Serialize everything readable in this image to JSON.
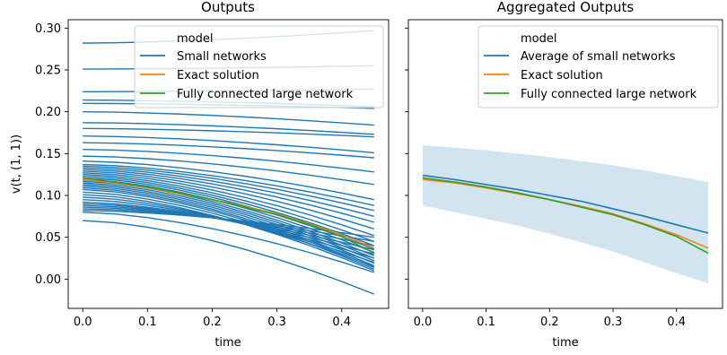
{
  "chart_data": [
    {
      "type": "line",
      "title": "Outputs",
      "xlabel": "time",
      "ylabel": "v(t, (1, 1))",
      "xlim": [
        -0.0225,
        0.4725
      ],
      "ylim": [
        -0.035,
        0.31
      ],
      "xticks": [
        0.0,
        0.1,
        0.2,
        0.3,
        0.4
      ],
      "yticks": [
        0.0,
        0.05,
        0.1,
        0.15,
        0.2,
        0.25,
        0.3
      ],
      "x": [
        0.0,
        0.05,
        0.1,
        0.15,
        0.2,
        0.25,
        0.3,
        0.35,
        0.4,
        0.45
      ],
      "legend": {
        "title": "model",
        "location": "upper right",
        "entries": [
          {
            "label": "Small networks",
            "color": "#1f77b4"
          },
          {
            "label": "Exact solution",
            "color": "#ff7f0e"
          },
          {
            "label": "Fully connected large network",
            "color": "#2ca02c"
          }
        ]
      },
      "series": [
        {
          "color": "#1f77b4",
          "ensemble_of": "Small networks",
          "start_end_pairs": [
            [
              0.282,
              0.297
            ],
            [
              0.251,
              0.255
            ],
            [
              0.224,
              0.227
            ],
            [
              0.214,
              0.206
            ],
            [
              0.21,
              0.204
            ],
            [
              0.2,
              0.184
            ],
            [
              0.187,
              0.173
            ],
            [
              0.18,
              0.17
            ],
            [
              0.171,
              0.151
            ],
            [
              0.163,
              0.145
            ],
            [
              0.155,
              0.128
            ],
            [
              0.147,
              0.113
            ],
            [
              0.141,
              0.095
            ],
            [
              0.137,
              0.088
            ],
            [
              0.135,
              0.082
            ],
            [
              0.133,
              0.075
            ],
            [
              0.131,
              0.068
            ],
            [
              0.129,
              0.06
            ],
            [
              0.127,
              0.052
            ],
            [
              0.125,
              0.045
            ],
            [
              0.123,
              0.04
            ],
            [
              0.121,
              0.036
            ],
            [
              0.119,
              0.032
            ],
            [
              0.117,
              0.028
            ],
            [
              0.115,
              0.025
            ],
            [
              0.113,
              0.022
            ],
            [
              0.111,
              0.019
            ],
            [
              0.109,
              0.016
            ],
            [
              0.107,
              0.014
            ],
            [
              0.104,
              0.012
            ],
            [
              0.101,
              0.01
            ],
            [
              0.098,
              0.015
            ],
            [
              0.095,
              0.02
            ],
            [
              0.092,
              0.025
            ],
            [
              0.09,
              0.03
            ],
            [
              0.088,
              0.035
            ],
            [
              0.086,
              0.04
            ],
            [
              0.084,
              0.045
            ],
            [
              0.082,
              0.05
            ],
            [
              0.08,
              0.008
            ],
            [
              0.07,
              -0.018
            ]
          ]
        },
        {
          "name": "Exact solution",
          "color": "#ff7f0e",
          "values": [
            0.119,
            0.115,
            0.109,
            0.102,
            0.095,
            0.087,
            0.078,
            0.066,
            0.053,
            0.037
          ]
        },
        {
          "name": "Fully connected large network",
          "color": "#2ca02c",
          "values": [
            0.121,
            0.116,
            0.11,
            0.103,
            0.095,
            0.086,
            0.077,
            0.065,
            0.051,
            0.031
          ]
        }
      ]
    },
    {
      "type": "line",
      "title": "Aggregated Outputs",
      "xlabel": "time",
      "xlim": [
        -0.0225,
        0.4725
      ],
      "ylim": [
        -0.035,
        0.31
      ],
      "xticks": [
        0.0,
        0.1,
        0.2,
        0.3,
        0.4
      ],
      "shares_y_with": "Outputs",
      "x": [
        0.0,
        0.05,
        0.1,
        0.15,
        0.2,
        0.25,
        0.3,
        0.35,
        0.4,
        0.45
      ],
      "band": {
        "color": "#1f77b4",
        "alpha": 0.2,
        "upper": [
          0.16,
          0.157,
          0.154,
          0.15,
          0.146,
          0.141,
          0.136,
          0.13,
          0.123,
          0.116
        ],
        "lower": [
          0.088,
          0.08,
          0.072,
          0.064,
          0.054,
          0.044,
          0.033,
          0.02,
          0.007,
          -0.005
        ]
      },
      "legend": {
        "title": "model",
        "location": "upper right",
        "entries": [
          {
            "label": "Average of small networks",
            "color": "#1f77b4"
          },
          {
            "label": "Exact solution",
            "color": "#ff7f0e"
          },
          {
            "label": "Fully connected large network",
            "color": "#2ca02c"
          }
        ]
      },
      "series": [
        {
          "name": "Average of small networks",
          "color": "#1f77b4",
          "values": [
            0.124,
            0.119,
            0.113,
            0.107,
            0.1,
            0.093,
            0.084,
            0.075,
            0.065,
            0.055
          ]
        },
        {
          "name": "Exact solution",
          "color": "#ff7f0e",
          "values": [
            0.119,
            0.115,
            0.109,
            0.102,
            0.095,
            0.087,
            0.078,
            0.066,
            0.053,
            0.037
          ]
        },
        {
          "name": "Fully connected large network",
          "color": "#2ca02c",
          "values": [
            0.121,
            0.116,
            0.11,
            0.103,
            0.095,
            0.086,
            0.077,
            0.065,
            0.051,
            0.031
          ]
        }
      ]
    }
  ]
}
